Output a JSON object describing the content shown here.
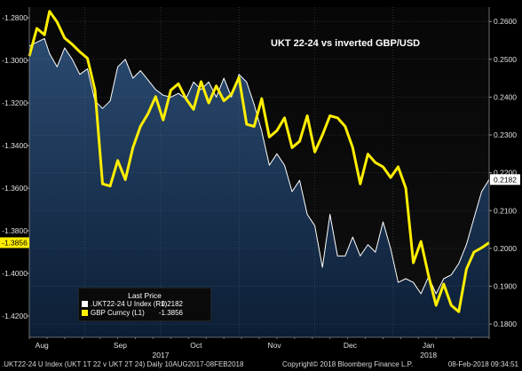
{
  "chart_data": {
    "type": "line",
    "title": "UKT 22-24 vs inverted GBP/USD",
    "left_axis": {
      "range": [
        -1.43,
        -1.275
      ],
      "ticks": [
        "-1.2800",
        "-1.3000",
        "-1.3200",
        "-1.3400",
        "-1.3600",
        "-1.3800",
        "-1.4000",
        "-1.4200"
      ],
      "current_value_label": "-1.3856",
      "inverted_display": false
    },
    "right_axis": {
      "range": [
        0.1765,
        0.2638
      ],
      "ticks": [
        "0.2600",
        "0.2500",
        "0.2400",
        "0.2300",
        "0.2200",
        "0.2100",
        "0.2000",
        "0.1900",
        "0.1800"
      ],
      "current_value_label": "0.2182"
    },
    "x_axis": {
      "start": "2017-08-10",
      "end": "2018-02-08",
      "month_labels": [
        {
          "label": "Aug",
          "date": "2017-08-15"
        },
        {
          "label": "Sep",
          "date": "2017-09-15"
        },
        {
          "label": "Oct",
          "date": "2017-10-15"
        },
        {
          "label": "Nov",
          "date": "2017-11-15"
        },
        {
          "label": "Dec",
          "date": "2017-12-15"
        },
        {
          "label": "Jan",
          "date": "2018-01-15"
        }
      ],
      "year_labels": [
        {
          "label": "2017",
          "date": "2017-10-01"
        },
        {
          "label": "2018",
          "date": "2018-01-15"
        }
      ]
    },
    "series": [
      {
        "name": ".UKT22-24 U Index  (R1)",
        "axis": "right",
        "color": "#ffffff",
        "fill_color": "#1f3a5a",
        "last_value": "0.2182",
        "points": [
          [
            "2017-08-10",
            0.2535
          ],
          [
            "2017-08-13",
            0.2545
          ],
          [
            "2017-08-16",
            0.2555
          ],
          [
            "2017-08-18",
            0.2515
          ],
          [
            "2017-08-21",
            0.248
          ],
          [
            "2017-08-24",
            0.253
          ],
          [
            "2017-08-27",
            0.25
          ],
          [
            "2017-08-30",
            0.246
          ],
          [
            "2017-09-02",
            0.2475
          ],
          [
            "2017-09-05",
            0.239
          ],
          [
            "2017-09-08",
            0.237
          ],
          [
            "2017-09-11",
            0.239
          ],
          [
            "2017-09-14",
            0.248
          ],
          [
            "2017-09-17",
            0.25
          ],
          [
            "2017-09-20",
            0.245
          ],
          [
            "2017-09-23",
            0.247
          ],
          [
            "2017-09-26",
            0.2445
          ],
          [
            "2017-09-29",
            0.242
          ],
          [
            "2017-10-02",
            0.2405
          ],
          [
            "2017-10-05",
            0.24
          ],
          [
            "2017-10-08",
            0.241
          ],
          [
            "2017-10-11",
            0.2395
          ],
          [
            "2017-10-14",
            0.244
          ],
          [
            "2017-10-17",
            0.242
          ],
          [
            "2017-10-20",
            0.244
          ],
          [
            "2017-10-23",
            0.24
          ],
          [
            "2017-10-26",
            0.245
          ],
          [
            "2017-10-29",
            0.24
          ],
          [
            "2017-11-01",
            0.246
          ],
          [
            "2017-11-04",
            0.244
          ],
          [
            "2017-11-07",
            0.238
          ],
          [
            "2017-11-10",
            0.231
          ],
          [
            "2017-11-13",
            0.222
          ],
          [
            "2017-11-16",
            0.225
          ],
          [
            "2017-11-19",
            0.222
          ],
          [
            "2017-11-22",
            0.215
          ],
          [
            "2017-11-25",
            0.218
          ],
          [
            "2017-11-28",
            0.209
          ],
          [
            "2017-12-01",
            0.206
          ],
          [
            "2017-12-04",
            0.195
          ],
          [
            "2017-12-07",
            0.209
          ],
          [
            "2017-12-10",
            0.198
          ],
          [
            "2017-12-13",
            0.198
          ],
          [
            "2017-12-16",
            0.203
          ],
          [
            "2017-12-19",
            0.198
          ],
          [
            "2017-12-22",
            0.201
          ],
          [
            "2017-12-25",
            0.199
          ],
          [
            "2017-12-28",
            0.207
          ],
          [
            "2017-12-31",
            0.2
          ],
          [
            "2018-01-03",
            0.191
          ],
          [
            "2018-01-06",
            0.192
          ],
          [
            "2018-01-09",
            0.191
          ],
          [
            "2018-01-12",
            0.188
          ],
          [
            "2018-01-15",
            0.1925
          ],
          [
            "2018-01-18",
            0.188
          ],
          [
            "2018-01-21",
            0.192
          ],
          [
            "2018-01-24",
            0.193
          ],
          [
            "2018-01-27",
            0.196
          ],
          [
            "2018-01-30",
            0.201
          ],
          [
            "2018-02-02",
            0.208
          ],
          [
            "2018-02-05",
            0.215
          ],
          [
            "2018-02-08",
            0.2182
          ]
        ]
      },
      {
        "name": "GBP Curncy  (L1)",
        "axis": "left",
        "color": "#ffee00",
        "last_value": "-1.3856",
        "points": [
          [
            "2017-08-10",
            -1.298
          ],
          [
            "2017-08-13",
            -1.285
          ],
          [
            "2017-08-16",
            -1.288
          ],
          [
            "2017-08-18",
            -1.277
          ],
          [
            "2017-08-21",
            -1.282
          ],
          [
            "2017-08-24",
            -1.2895
          ],
          [
            "2017-08-27",
            -1.2925
          ],
          [
            "2017-08-30",
            -1.296
          ],
          [
            "2017-09-02",
            -1.299
          ],
          [
            "2017-09-05",
            -1.314
          ],
          [
            "2017-09-08",
            -1.358
          ],
          [
            "2017-09-11",
            -1.359
          ],
          [
            "2017-09-14",
            -1.347
          ],
          [
            "2017-09-17",
            -1.356
          ],
          [
            "2017-09-20",
            -1.341
          ],
          [
            "2017-09-23",
            -1.331
          ],
          [
            "2017-09-26",
            -1.325
          ],
          [
            "2017-09-29",
            -1.317
          ],
          [
            "2017-10-02",
            -1.328
          ],
          [
            "2017-10-05",
            -1.314
          ],
          [
            "2017-10-08",
            -1.311
          ],
          [
            "2017-10-11",
            -1.318
          ],
          [
            "2017-10-14",
            -1.323
          ],
          [
            "2017-10-17",
            -1.31
          ],
          [
            "2017-10-20",
            -1.32
          ],
          [
            "2017-10-23",
            -1.312
          ],
          [
            "2017-10-26",
            -1.319
          ],
          [
            "2017-10-29",
            -1.316
          ],
          [
            "2017-11-01",
            -1.308
          ],
          [
            "2017-11-04",
            -1.33
          ],
          [
            "2017-11-07",
            -1.331
          ],
          [
            "2017-11-10",
            -1.318
          ],
          [
            "2017-11-13",
            -1.336
          ],
          [
            "2017-11-16",
            -1.333
          ],
          [
            "2017-11-19",
            -1.327
          ],
          [
            "2017-11-22",
            -1.341
          ],
          [
            "2017-11-25",
            -1.338
          ],
          [
            "2017-11-28",
            -1.326
          ],
          [
            "2017-12-01",
            -1.343
          ],
          [
            "2017-12-04",
            -1.335
          ],
          [
            "2017-12-07",
            -1.326
          ],
          [
            "2017-12-10",
            -1.327
          ],
          [
            "2017-12-13",
            -1.331
          ],
          [
            "2017-12-16",
            -1.341
          ],
          [
            "2017-12-19",
            -1.358
          ],
          [
            "2017-12-22",
            -1.344
          ],
          [
            "2017-12-25",
            -1.348
          ],
          [
            "2017-12-28",
            -1.35
          ],
          [
            "2017-12-31",
            -1.355
          ],
          [
            "2018-01-03",
            -1.35
          ],
          [
            "2018-01-06",
            -1.36
          ],
          [
            "2018-01-09",
            -1.395
          ],
          [
            "2018-01-12",
            -1.385
          ],
          [
            "2018-01-15",
            -1.401
          ],
          [
            "2018-01-18",
            -1.415
          ],
          [
            "2018-01-21",
            -1.405
          ],
          [
            "2018-01-24",
            -1.415
          ],
          [
            "2018-01-27",
            -1.418
          ],
          [
            "2018-01-30",
            -1.398
          ],
          [
            "2018-02-02",
            -1.39
          ],
          [
            "2018-02-05",
            -1.388
          ],
          [
            "2018-02-08",
            -1.3856
          ]
        ]
      }
    ],
    "legend": {
      "header": "Last Price",
      "placement": "bottom-left",
      "entries": [
        {
          "name": ".UKT22-24 U Index  (R1)",
          "value": "0.2182",
          "color": "#ffffff"
        },
        {
          "name": "GBP Curncy  (L1)",
          "value": "-1.3856",
          "color": "#ffee00"
        }
      ]
    },
    "grid": true
  },
  "footer": {
    "left": ".UKT22-24 U Index (UKT 1T 22 v UKT 2T 24)  Daily 10AUG2017-08FEB2018",
    "center": "Copyright© 2018 Bloomberg Finance L.P.",
    "right": "08-Feb-2018 09:34:51"
  }
}
